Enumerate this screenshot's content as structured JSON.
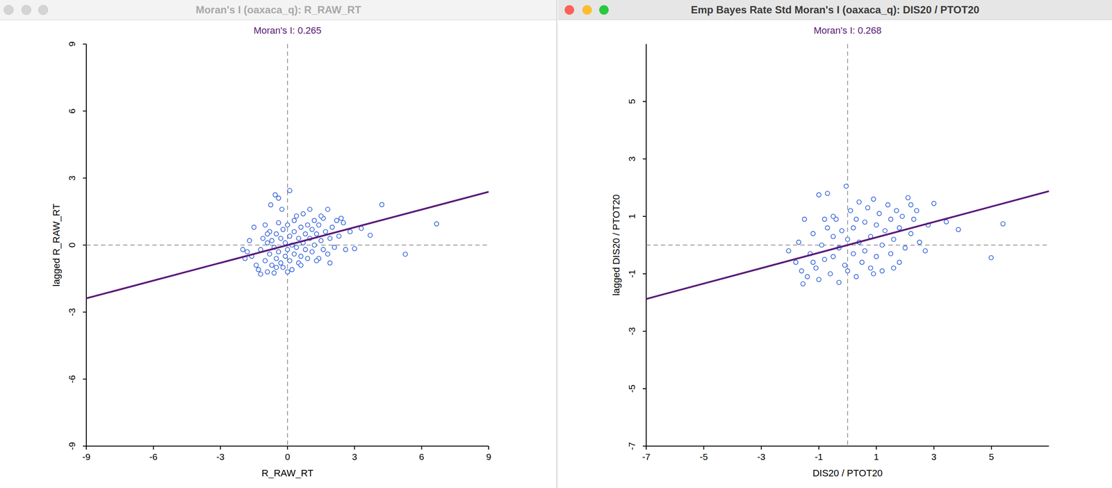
{
  "chart_data": [
    {
      "type": "scatter",
      "title": "Moran's I (oaxaca_q): R_RAW_RT",
      "subtitle": "Moran's I: 0.265",
      "moran_i": 0.265,
      "x_label": "R_RAW_RT",
      "y_label": "lagged R_RAW_RT",
      "xlim": [
        -9,
        9
      ],
      "ylim": [
        -9,
        9
      ],
      "xticks": [
        -9,
        -6,
        -3,
        0,
        3,
        6,
        9
      ],
      "yticks": [
        -9,
        -6,
        -3,
        0,
        3,
        6,
        9
      ],
      "color": "#2a5bd7",
      "marker": "circle",
      "x": [
        -1.8,
        -1.6,
        -1.5,
        -1.4,
        -1.3,
        -1.2,
        -1.1,
        -1.0,
        -1.0,
        -0.9,
        -0.9,
        -0.8,
        -0.8,
        -0.7,
        -0.7,
        -0.6,
        -0.6,
        -0.5,
        -0.5,
        -0.4,
        -0.4,
        -0.3,
        -0.3,
        -0.2,
        -0.2,
        -0.1,
        -0.1,
        0.0,
        0.0,
        0.1,
        0.1,
        0.2,
        0.2,
        0.3,
        0.3,
        0.4,
        0.4,
        0.5,
        0.5,
        0.6,
        0.6,
        0.7,
        0.7,
        0.8,
        0.8,
        0.9,
        0.9,
        1.0,
        1.0,
        1.1,
        1.1,
        1.2,
        1.2,
        1.3,
        1.4,
        1.4,
        1.5,
        1.6,
        1.6,
        1.7,
        1.8,
        1.8,
        1.9,
        2.0,
        2.1,
        2.2,
        2.3,
        2.5,
        2.6,
        2.8,
        3.0,
        3.3,
        3.7,
        4.22,
        5.27,
        6.67,
        0.1,
        -0.55,
        -0.4,
        -0.75,
        -0.25,
        -2.0,
        -1.9,
        -1.7,
        -1.2,
        -0.5,
        0.0,
        0.6,
        1.3,
        1.9,
        0.3,
        -0.9,
        1.5,
        2.4
      ],
      "values": [
        -0.3,
        -0.5,
        0.8,
        -0.9,
        -1.1,
        -0.2,
        0.3,
        -0.7,
        0.9,
        -1.2,
        0.1,
        -0.4,
        0.6,
        -0.9,
        0.2,
        -1.25,
        -0.1,
        0.5,
        -0.6,
        1.0,
        -0.3,
        -0.8,
        0.3,
        -1.0,
        0.7,
        -0.5,
        0.1,
        -0.2,
        0.9,
        -0.7,
        0.4,
        -1.1,
        0.0,
        0.6,
        -0.4,
        1.3,
        -0.1,
        -0.8,
        0.3,
        0.8,
        -0.5,
        0.1,
        1.4,
        -0.2,
        0.5,
        0.9,
        -0.6,
        0.3,
        1.6,
        -0.3,
        0.7,
        1.1,
        0.0,
        0.5,
        -0.6,
        0.9,
        0.2,
        1.2,
        -0.2,
        0.6,
        1.6,
        -0.4,
        0.3,
        0.8,
        -0.1,
        1.1,
        0.4,
        1.0,
        -0.2,
        0.6,
        -0.16,
        0.75,
        0.44,
        1.81,
        -0.41,
        0.95,
        2.44,
        2.25,
        2.1,
        1.8,
        1.6,
        -0.2,
        -0.6,
        0.2,
        -1.3,
        -1.0,
        -1.2,
        -0.9,
        -0.7,
        -0.8,
        1.1,
        0.5,
        1.3,
        1.2
      ]
    },
    {
      "type": "scatter",
      "title": "Emp Bayes Rate Std Moran's I (oaxaca_q): DIS20 / PTOT20",
      "subtitle": "Moran's I: 0.268",
      "moran_i": 0.268,
      "x_label": "DIS20 / PTOT20",
      "y_label": "lagged DIS20 / PTOT20",
      "xlim": [
        -7,
        7
      ],
      "ylim": [
        -7,
        7
      ],
      "xticks": [
        -7,
        -5,
        -3,
        -1,
        1,
        3,
        5
      ],
      "yticks": [
        -7,
        -5,
        -3,
        -1,
        1,
        3,
        5
      ],
      "color": "#2a5bd7",
      "marker": "circle",
      "x": [
        -2.05,
        -1.8,
        -1.55,
        -1.5,
        -1.4,
        -1.3,
        -1.2,
        -1.1,
        -1.0,
        -1.0,
        -0.9,
        -0.8,
        -0.7,
        -0.7,
        -0.6,
        -0.5,
        -0.5,
        -0.4,
        -0.3,
        -0.3,
        -0.2,
        -0.1,
        -0.05,
        0.0,
        0.0,
        0.1,
        0.2,
        0.2,
        0.3,
        0.4,
        0.4,
        0.5,
        0.6,
        0.6,
        0.7,
        0.8,
        0.8,
        0.9,
        1.0,
        1.0,
        1.1,
        1.2,
        1.2,
        1.3,
        1.4,
        1.5,
        1.5,
        1.6,
        1.7,
        1.8,
        1.8,
        1.9,
        2.0,
        2.1,
        2.2,
        2.3,
        2.4,
        2.5,
        2.7,
        2.8,
        3.0,
        3.43,
        3.85,
        4.99,
        5.4,
        -1.6,
        -1.2,
        -0.8,
        0.3,
        1.6,
        2.2,
        -0.5,
        -1.7,
        0.9
      ],
      "values": [
        -0.2,
        -0.6,
        -1.35,
        0.9,
        -1.1,
        -0.3,
        0.4,
        -0.8,
        1.75,
        -1.2,
        0.0,
        -0.5,
        1.8,
        0.6,
        -1.0,
        0.3,
        -0.4,
        0.9,
        -1.3,
        -0.1,
        0.5,
        -0.7,
        2.05,
        0.2,
        -0.9,
        1.2,
        -0.3,
        0.6,
        -1.1,
        0.1,
        1.5,
        -0.6,
        0.8,
        -0.2,
        1.3,
        -0.8,
        0.3,
        1.6,
        -0.4,
        0.7,
        1.1,
        0.0,
        -0.9,
        0.5,
        1.4,
        -0.3,
        0.9,
        0.2,
        1.2,
        -0.6,
        0.6,
        1.0,
        -0.1,
        1.65,
        0.4,
        0.9,
        1.2,
        0.1,
        -0.2,
        0.7,
        1.45,
        0.81,
        0.54,
        -0.44,
        0.74,
        -0.9,
        -0.6,
        0.9,
        0.9,
        -0.8,
        1.4,
        1.0,
        0.1,
        -1.0
      ]
    }
  ]
}
